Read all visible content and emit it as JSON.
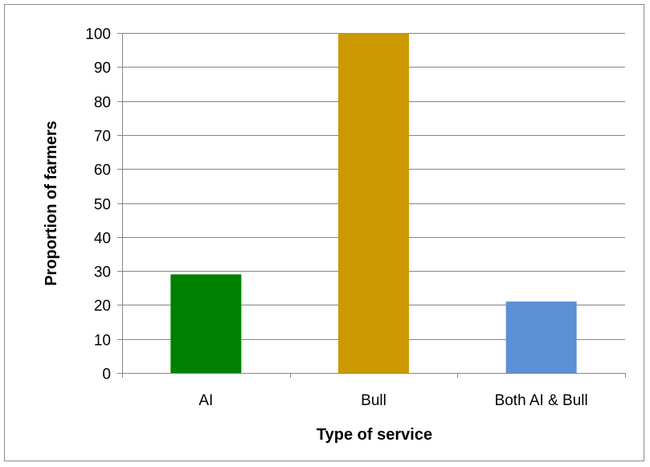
{
  "chart_data": {
    "type": "bar",
    "title": "",
    "xlabel": "Type of service",
    "ylabel": "Proportion of farmers",
    "categories": [
      "AI",
      "Bull",
      "Both AI & Bull"
    ],
    "values": [
      29,
      100,
      21
    ],
    "colors": [
      "#008000",
      "#cc9900",
      "#5b8fd6"
    ],
    "ylim": [
      0,
      100
    ],
    "yticks": [
      0,
      10,
      20,
      30,
      40,
      50,
      60,
      70,
      80,
      90,
      100
    ],
    "grid": true,
    "gridline_color": "#868686",
    "axis_color": "#868686"
  }
}
